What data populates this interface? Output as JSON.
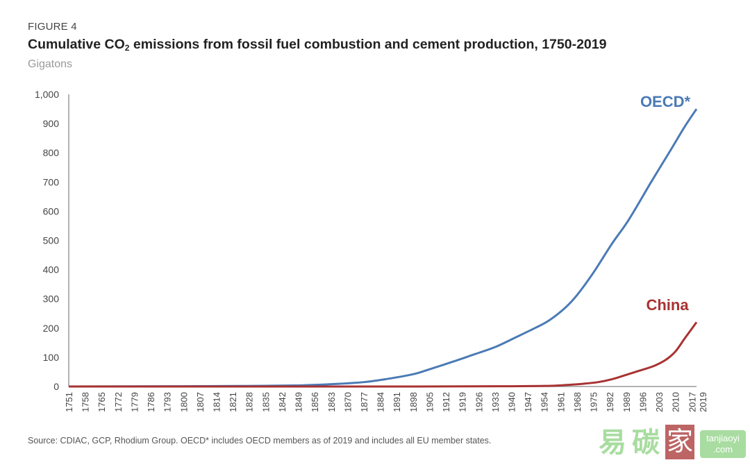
{
  "figure_label": "FIGURE 4",
  "title_prefix": "Cumulative CO",
  "title_sub": "2",
  "title_suffix": " emissions from fossil fuel combustion and cement production, 1750-2019",
  "subtitle": "Gigatons",
  "source": "Source: CDIAC, GCP, Rhodium Group. OECD* includes OECD members as of 2019 and includes all EU member states.",
  "watermark": {
    "cn_1": "易",
    "cn_2": "碳",
    "cn_3": "家",
    "domain_1": "tanjiaoyi",
    "domain_2": ".com"
  },
  "colors": {
    "oecd": "#4a7ab5",
    "china": "#a83232",
    "axis": "#999999",
    "text": "#444444"
  },
  "chart_data": {
    "type": "line",
    "title": "Cumulative CO2 emissions from fossil fuel combustion and cement production, 1750-2019",
    "ylabel": "Gigatons",
    "xlabel": "",
    "xlim": [
      1751,
      2019
    ],
    "ylim": [
      0,
      1000
    ],
    "yticks": [
      0,
      100,
      200,
      300,
      400,
      500,
      600,
      700,
      800,
      900,
      1000
    ],
    "ytick_labels": [
      "0",
      "100",
      "200",
      "300",
      "400",
      "500",
      "600",
      "700",
      "800",
      "900",
      "1,000"
    ],
    "xticks": [
      1751,
      1758,
      1765,
      1772,
      1779,
      1786,
      1793,
      1800,
      1807,
      1814,
      1821,
      1828,
      1835,
      1842,
      1849,
      1856,
      1863,
      1870,
      1877,
      1884,
      1891,
      1898,
      1905,
      1912,
      1919,
      1926,
      1933,
      1940,
      1947,
      1954,
      1961,
      1968,
      1975,
      1982,
      1989,
      1996,
      2003,
      2010,
      2017,
      2019
    ],
    "grid": false,
    "legend": "inline-labels at right end of lines",
    "series": [
      {
        "name": "OECD*",
        "x": [
          1751,
          1800,
          1830,
          1850,
          1863,
          1877,
          1887,
          1898,
          1905,
          1915,
          1923,
          1933,
          1942,
          1950,
          1956,
          1963,
          1968,
          1975,
          1983,
          1990,
          2000,
          2008,
          2014,
          2019
        ],
        "values": [
          0,
          1,
          2,
          4,
          8,
          15,
          26,
          42,
          59,
          85,
          107,
          135,
          169,
          200,
          226,
          270,
          313,
          390,
          490,
          570,
          705,
          810,
          890,
          950
        ]
      },
      {
        "name": "China",
        "x": [
          1751,
          1900,
          1940,
          1954,
          1959,
          1965,
          1970,
          1977,
          1983,
          1989,
          1995,
          2001,
          2006,
          2010,
          2014,
          2019
        ],
        "values": [
          0,
          0,
          1,
          2,
          3,
          6,
          9,
          15,
          25,
          40,
          55,
          71,
          92,
          120,
          165,
          220
        ]
      }
    ]
  }
}
